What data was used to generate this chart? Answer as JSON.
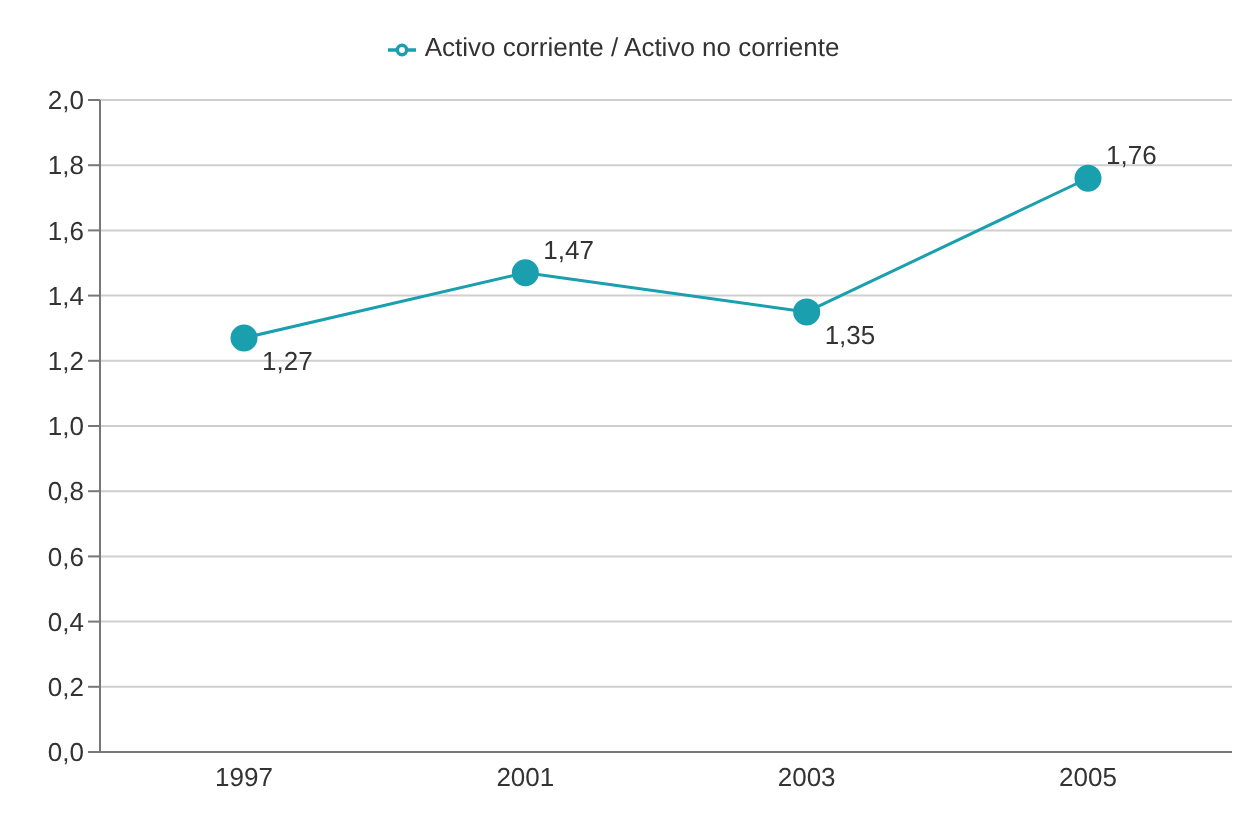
{
  "chart_data": {
    "type": "line",
    "categories": [
      "1997",
      "2001",
      "2003",
      "2005"
    ],
    "series": [
      {
        "name": "Activo corriente / Activo no corriente",
        "color": "#1a9fae",
        "values": [
          1.27,
          1.47,
          1.35,
          1.76
        ],
        "value_labels": [
          "1,27",
          "1,47",
          "1,35",
          "1,76"
        ]
      }
    ],
    "ylim": [
      0,
      2
    ],
    "yticks": [
      {
        "value": 0,
        "label": "0,0"
      },
      {
        "value": 0.2,
        "label": "0,2"
      },
      {
        "value": 0.4,
        "label": "0,4"
      },
      {
        "value": 0.6,
        "label": "0,6"
      },
      {
        "value": 0.8,
        "label": "0,8"
      },
      {
        "value": 1,
        "label": "1,0"
      },
      {
        "value": 1.2,
        "label": "1,2"
      },
      {
        "value": 1.4,
        "label": "1,4"
      },
      {
        "value": 1.6,
        "label": "1,6"
      },
      {
        "value": 1.8,
        "label": "1,8"
      },
      {
        "value": 2,
        "label": "2,0"
      }
    ],
    "grid": "y",
    "legend": "top",
    "marker": "circle",
    "line_style": "solid"
  }
}
